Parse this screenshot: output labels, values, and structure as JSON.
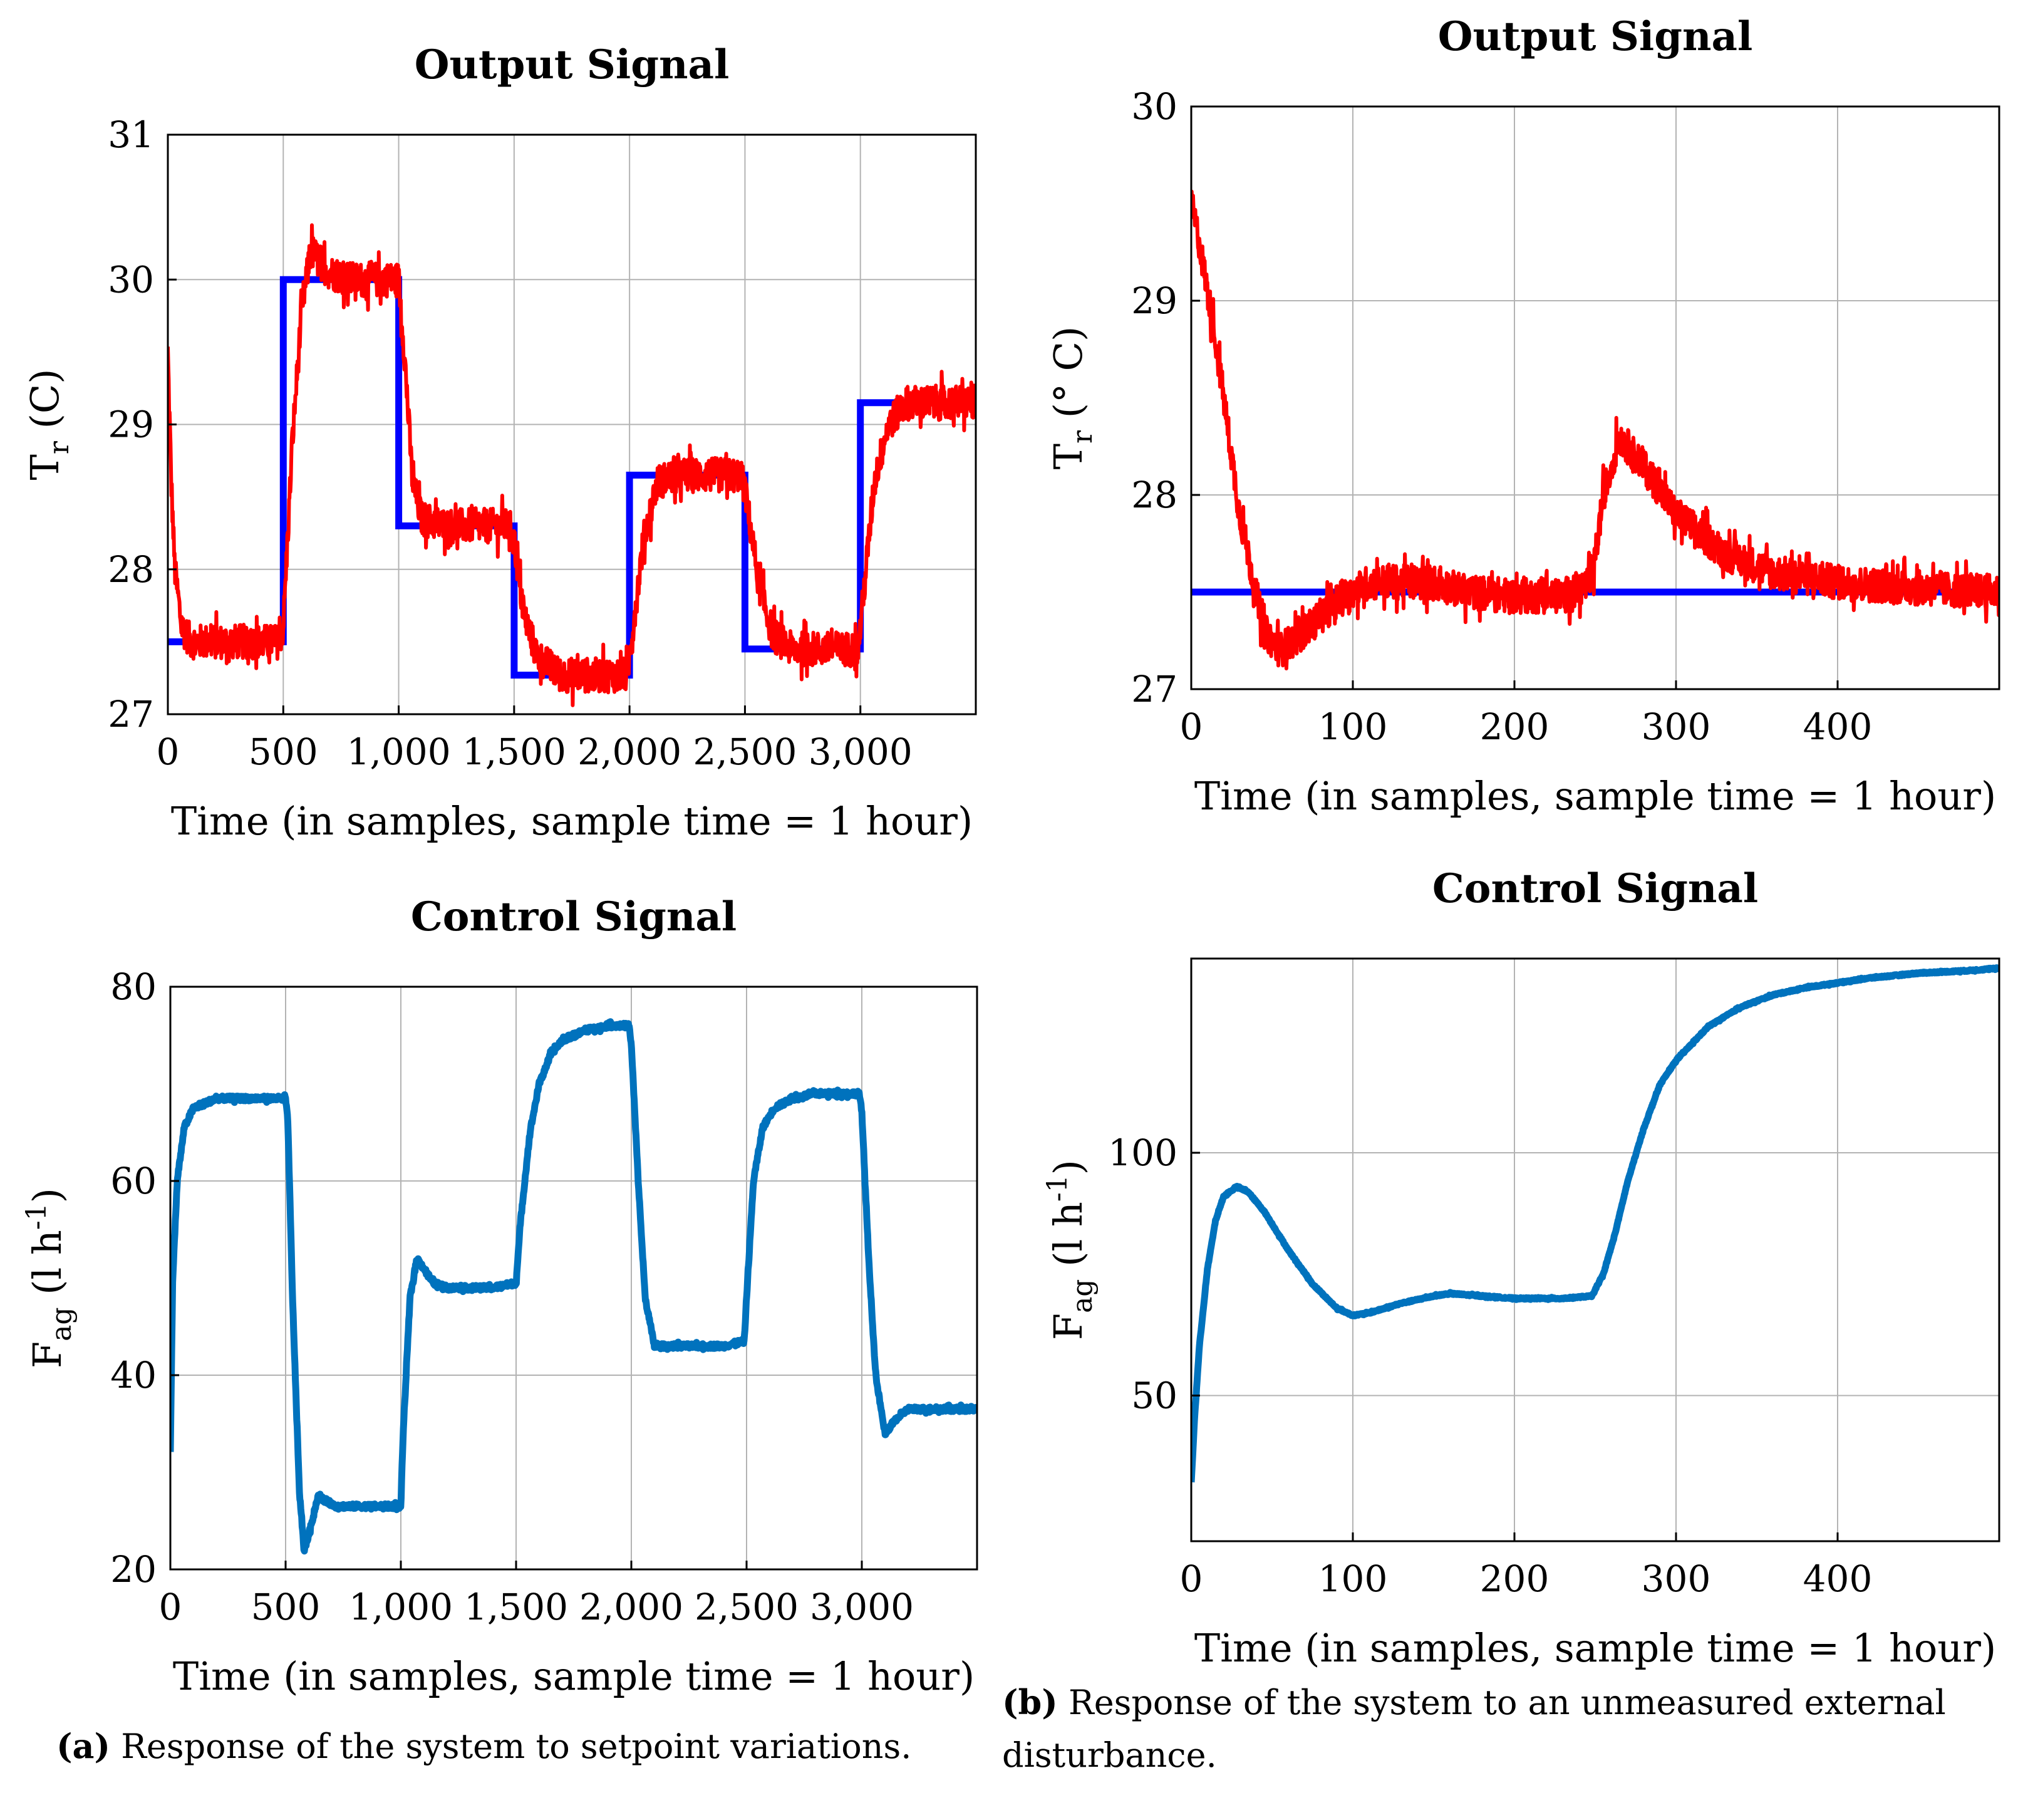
{
  "colors": {
    "setpoint": "#0000ff",
    "output": "#ff0000",
    "control": "#0072bd",
    "grid": "#b3b3b3"
  },
  "captions": {
    "a": {
      "label": "(a)",
      "text": "Response of the system to setpoint variations."
    },
    "b": {
      "label": "(b)",
      "text_line1": "Response of the system to an unmeasured external",
      "text_line2": "disturbance."
    }
  },
  "chart_data": [
    {
      "id": "a_output",
      "type": "line",
      "title": "Output Signal",
      "xlabel": "Time (in samples, sample time = 1 hour)",
      "ylabel": "T",
      "ylabel_sub": "r",
      "ylabel_suffix": " (C)",
      "xlim": [
        0,
        3500
      ],
      "ylim": [
        27,
        31
      ],
      "xticks": [
        0,
        500,
        1000,
        1500,
        2000,
        2500,
        3000
      ],
      "xtick_labels": [
        "0",
        "500",
        "1,000",
        "1,500",
        "2,000",
        "2,500",
        "3,000"
      ],
      "yticks": [
        27,
        28,
        29,
        30,
        31
      ],
      "ytick_labels": [
        "27",
        "28",
        "29",
        "30",
        "31"
      ],
      "series": [
        {
          "name": "setpoint",
          "color": "#0000ff",
          "step": true,
          "x": [
            0,
            500,
            1000,
            1500,
            2000,
            2500,
            3000,
            3500
          ],
          "y": [
            27.5,
            30.0,
            28.3,
            27.27,
            28.65,
            27.45,
            29.15,
            29.15
          ]
        },
        {
          "name": "output",
          "color": "#ff0000",
          "noise": 0.12,
          "x": [
            0,
            15,
            30,
            60,
            100,
            200,
            300,
            400,
            480,
            500,
            540,
            580,
            620,
            700,
            800,
            900,
            1000,
            1020,
            1060,
            1100,
            1200,
            1300,
            1400,
            1480,
            1500,
            1540,
            1600,
            1700,
            1800,
            1900,
            1990,
            2000,
            2060,
            2120,
            2200,
            2300,
            2400,
            2480,
            2500,
            2560,
            2620,
            2700,
            2800,
            2900,
            2990,
            3000,
            3060,
            3120,
            3200,
            3300,
            3400,
            3500
          ],
          "y": [
            29.5,
            28.6,
            28.0,
            27.6,
            27.5,
            27.5,
            27.5,
            27.5,
            27.5,
            27.6,
            28.9,
            29.8,
            30.2,
            30.05,
            30.0,
            30.0,
            30.0,
            29.6,
            28.6,
            28.35,
            28.3,
            28.3,
            28.3,
            28.3,
            28.2,
            27.7,
            27.4,
            27.27,
            27.27,
            27.27,
            27.27,
            27.4,
            28.2,
            28.6,
            28.65,
            28.65,
            28.65,
            28.65,
            28.55,
            27.9,
            27.55,
            27.45,
            27.45,
            27.45,
            27.45,
            27.6,
            28.6,
            29.0,
            29.15,
            29.15,
            29.15,
            29.15
          ]
        }
      ]
    },
    {
      "id": "b_output",
      "type": "line",
      "title": "Output Signal",
      "xlabel": "Time (in samples, sample time = 1 hour)",
      "ylabel": "T",
      "ylabel_sub": "r",
      "ylabel_suffix": " (° C)",
      "xlim": [
        0,
        500
      ],
      "ylim": [
        27,
        30
      ],
      "xticks": [
        0,
        100,
        200,
        300,
        400
      ],
      "xtick_labels": [
        "0",
        "100",
        "200",
        "300",
        "400"
      ],
      "yticks": [
        27,
        28,
        29,
        30
      ],
      "ytick_labels": [
        "27",
        "28",
        "29",
        "30"
      ],
      "series": [
        {
          "name": "setpoint",
          "color": "#0000ff",
          "step": false,
          "x": [
            0,
            500
          ],
          "y": [
            27.5,
            27.5
          ]
        },
        {
          "name": "output",
          "color": "#ff0000",
          "noise": 0.09,
          "x": [
            0,
            5,
            15,
            30,
            45,
            55,
            70,
            90,
            110,
            130,
            150,
            170,
            200,
            230,
            248,
            255,
            265,
            280,
            300,
            330,
            360,
            400,
            450,
            500
          ],
          "y": [
            29.5,
            29.3,
            28.8,
            27.9,
            27.3,
            27.2,
            27.3,
            27.45,
            27.55,
            27.55,
            27.55,
            27.5,
            27.48,
            27.48,
            27.55,
            28.0,
            28.3,
            28.15,
            27.9,
            27.7,
            27.6,
            27.55,
            27.52,
            27.5
          ]
        }
      ]
    },
    {
      "id": "a_control",
      "type": "line",
      "title": "Control Signal",
      "xlabel": "Time (in samples, sample time = 1 hour)",
      "ylabel": "F",
      "ylabel_sub": "ag",
      "ylabel_suffix": " (l h",
      "ylabel_sup": "-1",
      "ylabel_end": ")",
      "xlim": [
        0,
        3500
      ],
      "ylim": [
        20,
        80
      ],
      "xticks": [
        0,
        500,
        1000,
        1500,
        2000,
        2500,
        3000
      ],
      "xtick_labels": [
        "0",
        "500",
        "1,000",
        "1,500",
        "2,000",
        "2,500",
        "3,000"
      ],
      "yticks": [
        20,
        40,
        60,
        80
      ],
      "ytick_labels": [
        "20",
        "40",
        "60",
        "80"
      ],
      "series": [
        {
          "name": "control",
          "color": "#0072bd",
          "noise": 0.25,
          "x": [
            0,
            10,
            30,
            60,
            100,
            200,
            300,
            400,
            500,
            510,
            530,
            560,
            580,
            600,
            640,
            680,
            720,
            800,
            900,
            1000,
            1010,
            1040,
            1070,
            1100,
            1140,
            1200,
            1300,
            1400,
            1500,
            1520,
            1560,
            1600,
            1650,
            1700,
            1800,
            1900,
            1990,
            2000,
            2030,
            2060,
            2100,
            2200,
            2300,
            2400,
            2490,
            2500,
            2530,
            2570,
            2620,
            2700,
            2800,
            2900,
            2990,
            3000,
            3030,
            3060,
            3100,
            3150,
            3200,
            3300,
            3400,
            3500
          ],
          "y": [
            32,
            50,
            60,
            65.5,
            67.5,
            68.5,
            68.5,
            68.5,
            68.5,
            66,
            48,
            28,
            22,
            23.5,
            27.5,
            27,
            26.5,
            26.5,
            26.5,
            26.5,
            34,
            48,
            52,
            51,
            49.5,
            49,
            49,
            49,
            49.5,
            56,
            65,
            70,
            73,
            74.5,
            75.5,
            76,
            76,
            74,
            60,
            48,
            43,
            43,
            43,
            43,
            43.5,
            48,
            60,
            65.5,
            67.5,
            68.5,
            69,
            69,
            69,
            67,
            52,
            40,
            34,
            35.5,
            36.5,
            36.5,
            36.5,
            36.5
          ]
        }
      ]
    },
    {
      "id": "b_control",
      "type": "line",
      "title": "Control Signal",
      "xlabel": "Time (in samples, sample time = 1 hour)",
      "ylabel": "F",
      "ylabel_sub": "ag",
      "ylabel_suffix": " (l h",
      "ylabel_sup": "-1",
      "ylabel_end": ")",
      "xlim": [
        0,
        500
      ],
      "ylim": [
        20,
        140
      ],
      "xticks": [
        0,
        100,
        200,
        300,
        400
      ],
      "xtick_labels": [
        "0",
        "100",
        "200",
        "300",
        "400"
      ],
      "yticks": [
        50,
        100
      ],
      "ytick_labels": [
        "50",
        "100"
      ],
      "series": [
        {
          "name": "control",
          "color": "#0072bd",
          "noise": 0.15,
          "x": [
            0,
            2,
            5,
            10,
            15,
            20,
            28,
            35,
            45,
            60,
            75,
            90,
            100,
            110,
            130,
            150,
            160,
            180,
            200,
            230,
            248,
            255,
            262,
            270,
            280,
            290,
            300,
            320,
            340,
            360,
            380,
            400,
            420,
            450,
            480,
            500
          ],
          "y": [
            32,
            45,
            60,
            76,
            86,
            91,
            93,
            92,
            88,
            80,
            73,
            68,
            66.5,
            67,
            69,
            70.5,
            71,
            70.5,
            70,
            70,
            70.5,
            75,
            83,
            94,
            105,
            114,
            119,
            126,
            130,
            132.5,
            134,
            135,
            136,
            137,
            137.5,
            138
          ]
        }
      ]
    }
  ]
}
